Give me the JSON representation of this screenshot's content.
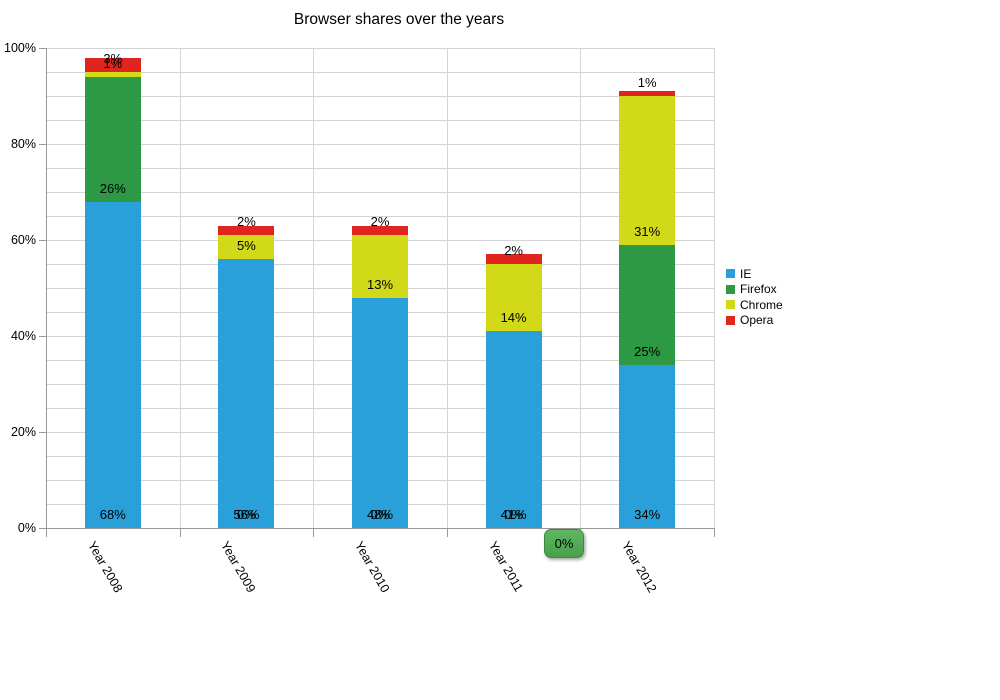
{
  "title": "Browser shares over the years",
  "tooltip": {
    "value_label": "0%"
  },
  "chart_data": {
    "type": "bar",
    "stacked": true,
    "unit": "%",
    "title": "Browser shares over the years",
    "categories": [
      "Year 2008",
      "Year 2009",
      "Year 2010",
      "Year 2011",
      "Year 2012"
    ],
    "series": [
      {
        "name": "IE",
        "color": "#2aa0da",
        "values": [
          68,
          56,
          48,
          41,
          34
        ]
      },
      {
        "name": "Firefox",
        "color": "#2e9944",
        "values": [
          26,
          0,
          0,
          0,
          25
        ]
      },
      {
        "name": "Chrome",
        "color": "#d2d918",
        "values": [
          1,
          5,
          13,
          14,
          31
        ]
      },
      {
        "name": "Opera",
        "color": "#e0251f",
        "values": [
          3,
          2,
          2,
          2,
          1
        ]
      }
    ],
    "y_axis": {
      "tick_labels": [
        "0%",
        "20%",
        "40%",
        "60%",
        "80%",
        "100%"
      ],
      "min": 0,
      "max": 100,
      "major_step": 20,
      "minor_grid_step": 5
    },
    "data_labels_visible": true,
    "grid": true,
    "legend_position": "right"
  },
  "legend": {
    "items": [
      {
        "label": "IE",
        "color": "#2aa0da"
      },
      {
        "label": "Firefox",
        "color": "#2e9944"
      },
      {
        "label": "Chrome",
        "color": "#d2d918"
      },
      {
        "label": "Opera",
        "color": "#e0251f"
      }
    ]
  },
  "colors": {
    "grid": "#d4d4d4",
    "axis": "#999999",
    "tooltip_fill": "#4ca851",
    "tooltip_border": "#3a8b3f",
    "background": "#ffffff"
  }
}
